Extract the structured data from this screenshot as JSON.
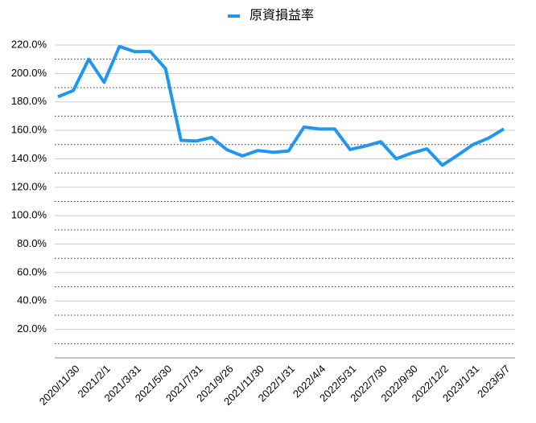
{
  "chart_data": {
    "type": "line",
    "title": "原資損益率",
    "categories": [
      null,
      "2020/11/30",
      null,
      "2021/2/1",
      null,
      "2021/3/31",
      null,
      "2021/5/30",
      null,
      "2021/7/31",
      null,
      "2021/9/26",
      null,
      "2021/11/30",
      null,
      "2022/1/31",
      null,
      "2022/4/4",
      null,
      "2022/5/31",
      null,
      "2022/7/30",
      null,
      "2022/9/30",
      null,
      "2022/12/2",
      null,
      "2023/1/31",
      null,
      "2023/5/7"
    ],
    "series": [
      {
        "name": "原資損益率",
        "color": "#1f97f0",
        "values": [
          183.6,
          188,
          210,
          193.8,
          219,
          215.3,
          215.5,
          203.4,
          153,
          152.5,
          155,
          146.3,
          142,
          145.8,
          144.6,
          145.5,
          162.3,
          161,
          161,
          146.5,
          149,
          152,
          140,
          144,
          147,
          135.5,
          142.5,
          150,
          154.5,
          161
        ]
      }
    ],
    "ylim": [
      0,
      220
    ],
    "yticks": [
      {
        "value": 20,
        "label": "20.0%"
      },
      {
        "value": 40,
        "label": "40.0%"
      },
      {
        "value": 60,
        "label": "60.0%"
      },
      {
        "value": 80,
        "label": "80.0%"
      },
      {
        "value": 100,
        "label": "100.0%"
      },
      {
        "value": 120,
        "label": "120.0%"
      },
      {
        "value": 140,
        "label": "140.0%"
      },
      {
        "value": 160,
        "label": "160.0%"
      },
      {
        "value": 180,
        "label": "180.0%"
      },
      {
        "value": 200,
        "label": "200.0%"
      },
      {
        "value": 220,
        "label": "220.0%"
      }
    ],
    "minor_yticks": [
      10,
      30,
      50,
      70,
      90,
      110,
      130,
      150,
      170,
      190,
      210
    ],
    "grid": true
  }
}
